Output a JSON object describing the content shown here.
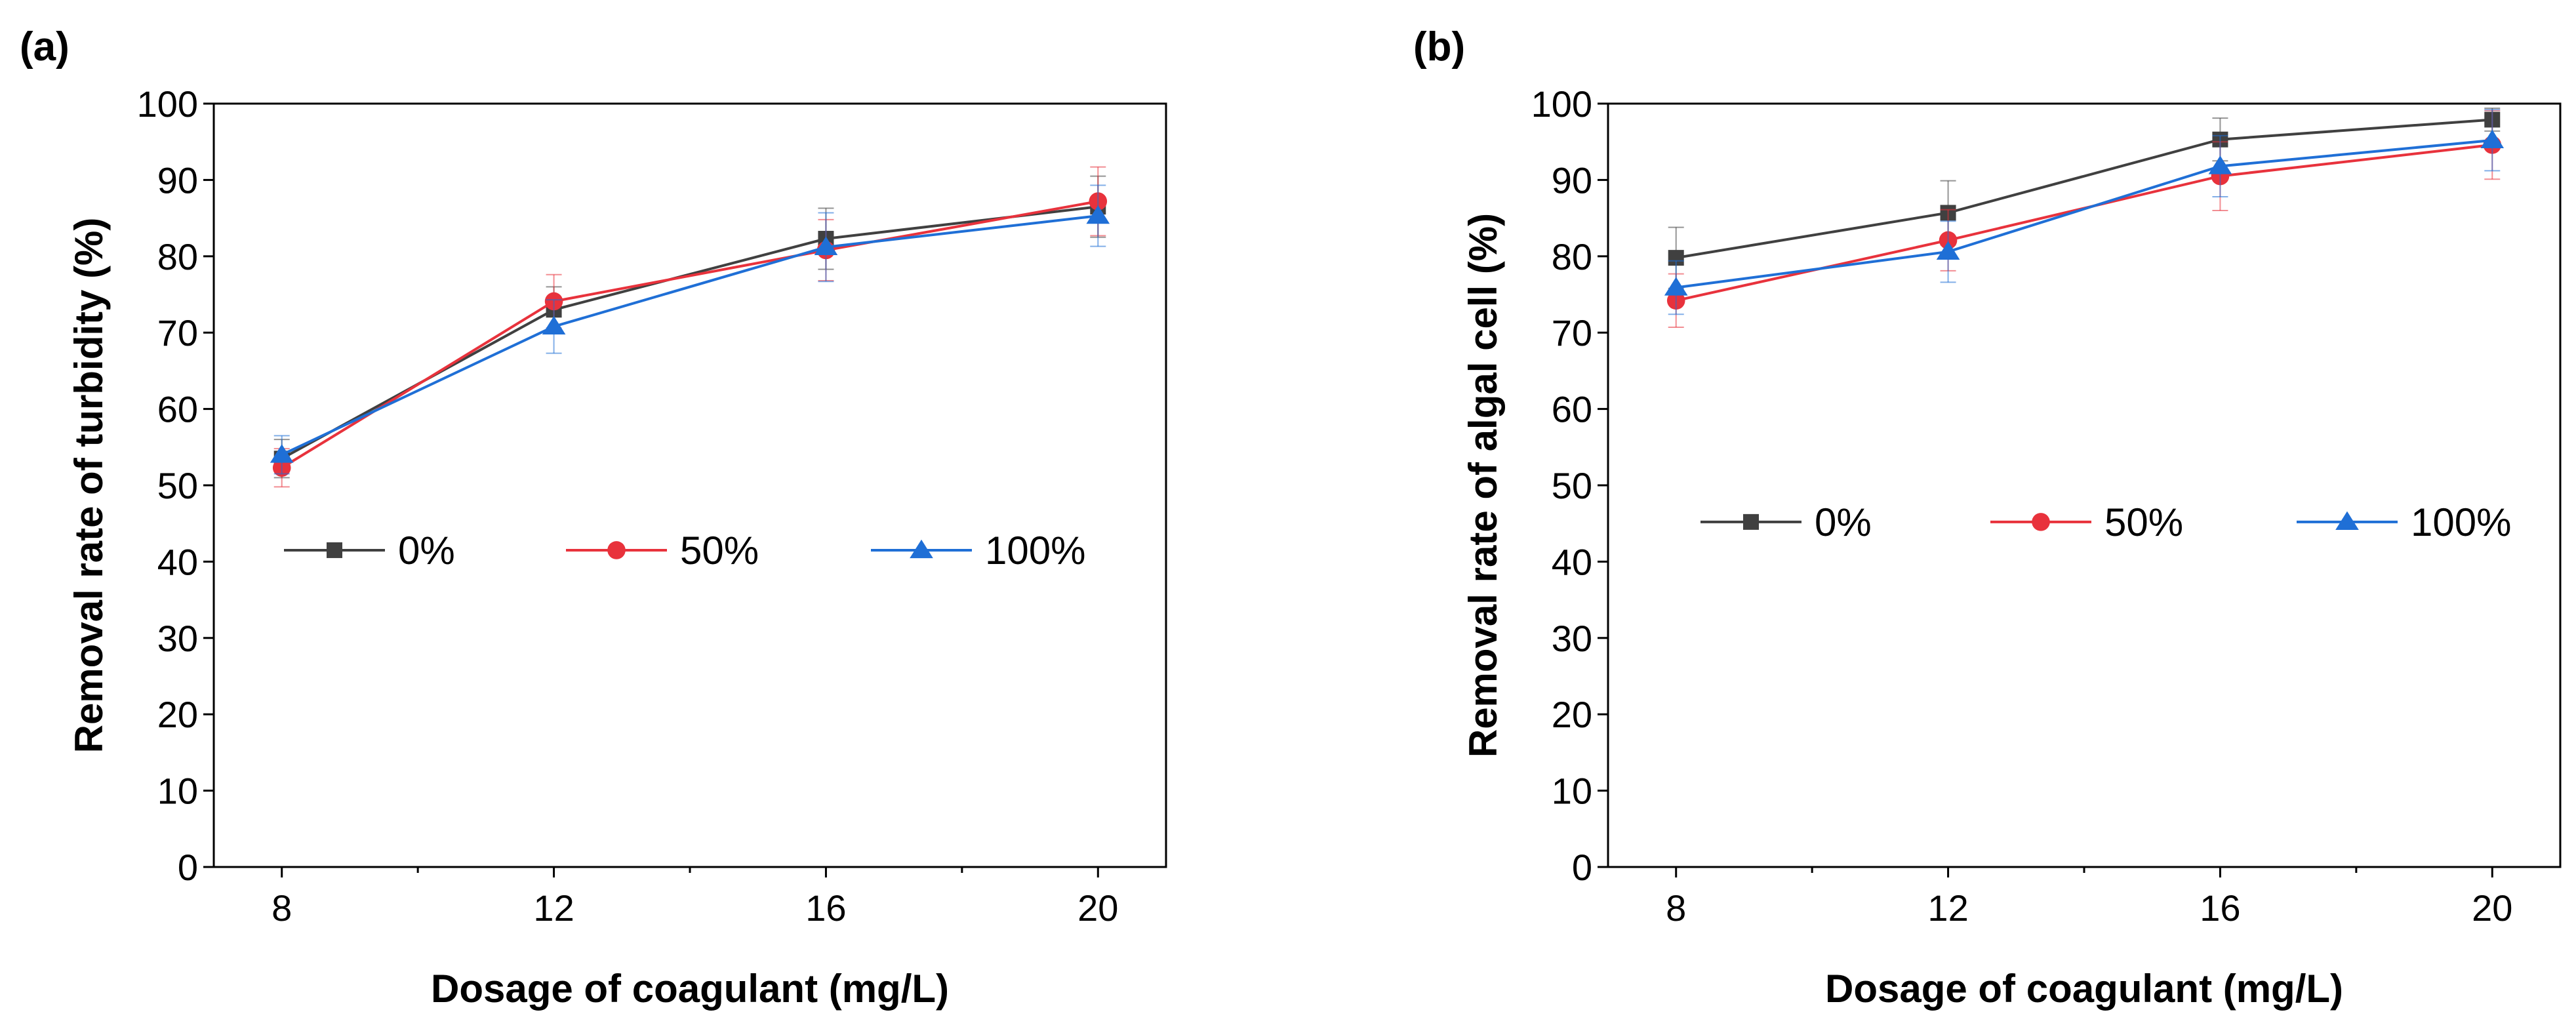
{
  "colors": {
    "s0": "#404040",
    "s1": "#e8323c",
    "s2": "#1f6fd6"
  },
  "chart_data": [
    {
      "type": "line",
      "panel_label": "(a)",
      "xlabel": "Dosage of coagulant (mg/L)",
      "ylabel": "Removal rate of turbidity (%)",
      "xlim": [
        7,
        21
      ],
      "ylim": [
        0,
        100
      ],
      "xticks": [
        8,
        12,
        16,
        20
      ],
      "xtick_labels": [
        "8",
        "12",
        "16",
        "20"
      ],
      "xminor": [
        10,
        14,
        18
      ],
      "yticks": [
        0,
        10,
        20,
        30,
        40,
        50,
        60,
        70,
        80,
        90,
        100
      ],
      "ytick_labels": [
        "0",
        "10",
        "20",
        "30",
        "40",
        "50",
        "60",
        "70",
        "80",
        "90",
        "100"
      ],
      "x": [
        8,
        12,
        16,
        20
      ],
      "legend_position": "center-left",
      "legend_y": 41.5,
      "series": [
        {
          "name": "0%",
          "marker": "square",
          "color_key": "s0",
          "values": [
            53.5,
            73.0,
            82.3,
            86.5
          ],
          "errors": [
            2.5,
            3.0,
            4.0,
            4.0
          ]
        },
        {
          "name": "50%",
          "marker": "circle",
          "color_key": "s1",
          "values": [
            52.3,
            74.1,
            80.8,
            87.2
          ],
          "errors": [
            2.5,
            3.5,
            4.0,
            4.5
          ]
        },
        {
          "name": "100%",
          "marker": "triangle",
          "color_key": "s2",
          "values": [
            54.0,
            70.8,
            81.2,
            85.3
          ],
          "errors": [
            2.5,
            3.5,
            4.5,
            4.0
          ]
        }
      ]
    },
    {
      "type": "line",
      "panel_label": "(b)",
      "xlabel": "Dosage of coagulant (mg/L)",
      "ylabel": "Removal rate of algal cell (%)",
      "xlim": [
        7,
        21
      ],
      "ylim": [
        0,
        100
      ],
      "xticks": [
        8,
        12,
        16,
        20
      ],
      "xtick_labels": [
        "8",
        "12",
        "16",
        "20"
      ],
      "xminor": [
        10,
        14,
        18
      ],
      "yticks": [
        0,
        10,
        20,
        30,
        40,
        50,
        60,
        70,
        80,
        90,
        100
      ],
      "ytick_labels": [
        "0",
        "10",
        "20",
        "30",
        "40",
        "50",
        "60",
        "70",
        "80",
        "90",
        "100"
      ],
      "x": [
        8,
        12,
        16,
        20
      ],
      "legend_position": "center",
      "legend_y": 45.2,
      "series": [
        {
          "name": "0%",
          "marker": "square",
          "color_key": "s0",
          "values": [
            79.8,
            85.7,
            95.3,
            97.9
          ],
          "errors": [
            4.0,
            4.2,
            2.8,
            1.5
          ]
        },
        {
          "name": "50%",
          "marker": "circle",
          "color_key": "s1",
          "values": [
            74.2,
            82.1,
            90.5,
            94.6
          ],
          "errors": [
            3.5,
            4.0,
            4.5,
            4.5
          ]
        },
        {
          "name": "100%",
          "marker": "triangle",
          "color_key": "s2",
          "values": [
            75.9,
            80.6,
            91.8,
            95.2
          ],
          "errors": [
            3.5,
            4.0,
            4.0,
            4.0
          ]
        }
      ]
    }
  ]
}
